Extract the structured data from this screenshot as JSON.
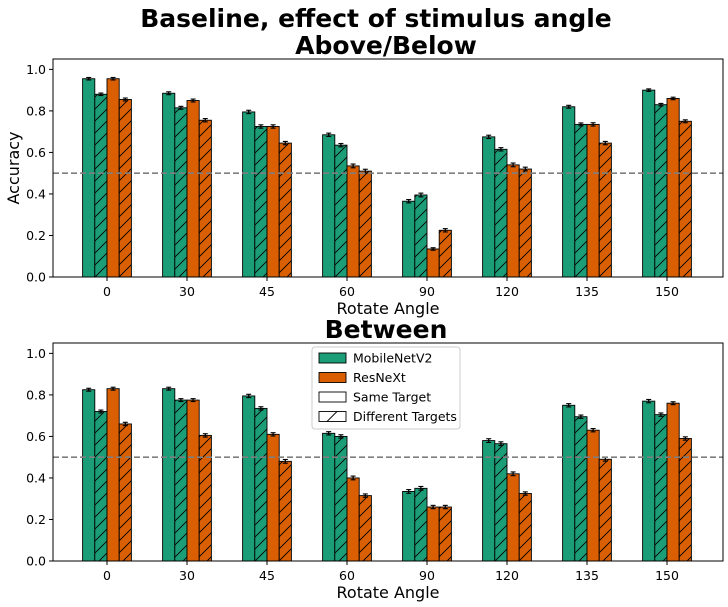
{
  "figure": {
    "title_line1": "Baseline, effect of stimulus angle",
    "title_line2": "Above/Below"
  },
  "colors": {
    "mobilenet": "#1b9e77",
    "resnext": "#d95f02",
    "chance_line": "#7f7f7f"
  },
  "chart_data": [
    {
      "type": "bar",
      "title": "Above/Below",
      "xlabel": "Rotate Angle",
      "ylabel": "Accuracy",
      "ylim": [
        0,
        1.05
      ],
      "yticks": [
        0.0,
        0.2,
        0.4,
        0.6,
        0.8,
        1.0
      ],
      "ytick_labels": [
        "0.0",
        "0.2",
        "0.4",
        "0.6",
        "0.8",
        "1.0"
      ],
      "chance_level": 0.5,
      "grid": false,
      "categories": [
        "0",
        "30",
        "45",
        "60",
        "90",
        "120",
        "135",
        "150"
      ],
      "series": [
        {
          "name": "MobileNetV2 Same Target",
          "model": "mobilenet",
          "hatch": false,
          "values": [
            0.955,
            0.885,
            0.795,
            0.685,
            0.365,
            0.675,
            0.82,
            0.9
          ],
          "errors": [
            0.006,
            0.007,
            0.008,
            0.008,
            0.008,
            0.008,
            0.007,
            0.006
          ]
        },
        {
          "name": "MobileNetV2 Different Targets",
          "model": "mobilenet",
          "hatch": true,
          "values": [
            0.88,
            0.815,
            0.725,
            0.635,
            0.395,
            0.615,
            0.735,
            0.83
          ],
          "errors": [
            0.006,
            0.007,
            0.008,
            0.008,
            0.009,
            0.008,
            0.007,
            0.006
          ]
        },
        {
          "name": "ResNeXt Same Target",
          "model": "resnext",
          "hatch": false,
          "values": [
            0.955,
            0.85,
            0.725,
            0.535,
            0.135,
            0.54,
            0.735,
            0.86
          ],
          "errors": [
            0.006,
            0.007,
            0.008,
            0.009,
            0.006,
            0.009,
            0.008,
            0.006
          ]
        },
        {
          "name": "ResNeXt Different Targets",
          "model": "resnext",
          "hatch": true,
          "values": [
            0.855,
            0.755,
            0.645,
            0.51,
            0.225,
            0.52,
            0.645,
            0.75
          ],
          "errors": [
            0.007,
            0.008,
            0.008,
            0.009,
            0.008,
            0.009,
            0.008,
            0.007
          ]
        }
      ]
    },
    {
      "type": "bar",
      "title": "Between",
      "xlabel": "Rotate Angle",
      "ylabel": "",
      "ylim": [
        0,
        1.05
      ],
      "yticks": [
        0.0,
        0.2,
        0.4,
        0.6,
        0.8,
        1.0
      ],
      "ytick_labels": [
        "0.0",
        "0.2",
        "0.4",
        "0.6",
        "0.8",
        "1.0"
      ],
      "chance_level": 0.5,
      "grid": false,
      "legend": {
        "placement": "upper-center",
        "entries": [
          {
            "label": "MobileNetV2",
            "style": "mobilenet"
          },
          {
            "label": "ResNeXt",
            "style": "resnext"
          },
          {
            "label": "Same Target",
            "style": "plain"
          },
          {
            "label": "Different Targets",
            "style": "hatch"
          }
        ]
      },
      "categories": [
        "0",
        "30",
        "45",
        "60",
        "90",
        "120",
        "135",
        "150"
      ],
      "series": [
        {
          "name": "MobileNetV2 Same Target",
          "model": "mobilenet",
          "hatch": false,
          "values": [
            0.825,
            0.83,
            0.795,
            0.615,
            0.335,
            0.58,
            0.75,
            0.77
          ],
          "errors": [
            0.007,
            0.007,
            0.008,
            0.008,
            0.009,
            0.009,
            0.008,
            0.008
          ]
        },
        {
          "name": "MobileNetV2 Different Targets",
          "model": "mobilenet",
          "hatch": true,
          "values": [
            0.72,
            0.775,
            0.735,
            0.6,
            0.35,
            0.565,
            0.695,
            0.705
          ],
          "errors": [
            0.007,
            0.007,
            0.008,
            0.008,
            0.009,
            0.009,
            0.008,
            0.008
          ]
        },
        {
          "name": "ResNeXt Same Target",
          "model": "resnext",
          "hatch": false,
          "values": [
            0.83,
            0.775,
            0.61,
            0.4,
            0.26,
            0.42,
            0.63,
            0.76
          ],
          "errors": [
            0.007,
            0.007,
            0.008,
            0.009,
            0.008,
            0.009,
            0.008,
            0.007
          ]
        },
        {
          "name": "ResNeXt Different Targets",
          "model": "resnext",
          "hatch": true,
          "values": [
            0.66,
            0.605,
            0.48,
            0.315,
            0.26,
            0.325,
            0.49,
            0.59
          ],
          "errors": [
            0.008,
            0.008,
            0.009,
            0.008,
            0.008,
            0.008,
            0.009,
            0.008
          ]
        }
      ]
    }
  ]
}
